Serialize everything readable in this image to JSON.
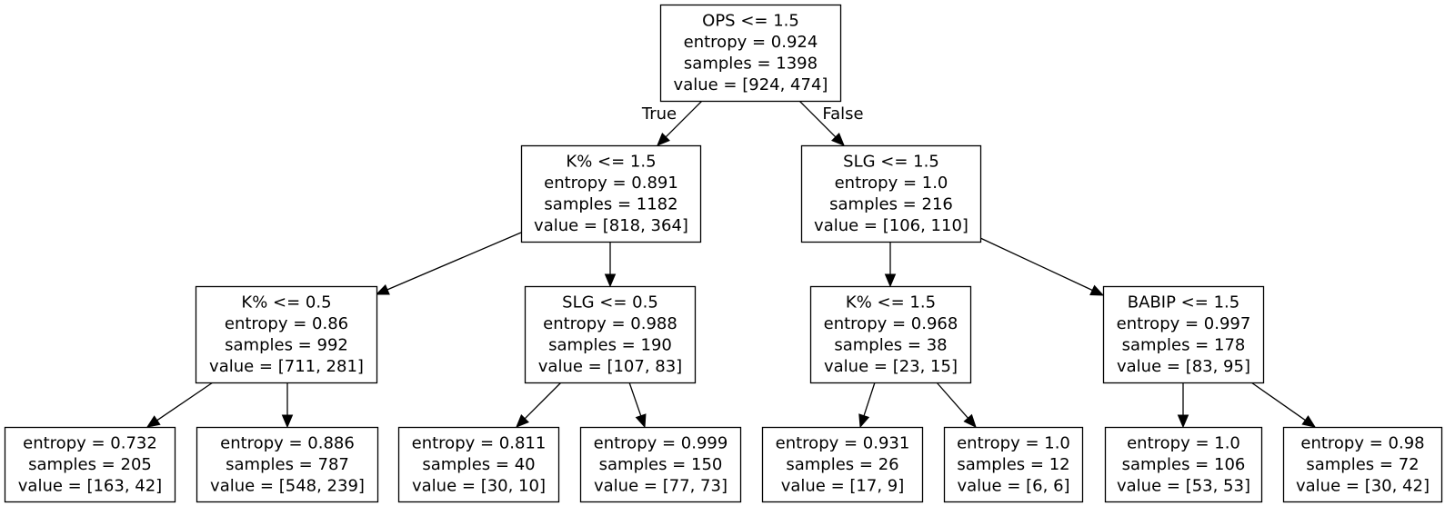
{
  "tree": {
    "nodes": [
      {
        "id": "n0",
        "lines": [
          "OPS <= 1.5",
          "entropy = 0.924",
          "samples = 1398",
          "value = [924, 474]"
        ]
      },
      {
        "id": "n1",
        "lines": [
          "K% <= 1.5",
          "entropy = 0.891",
          "samples = 1182",
          "value = [818, 364]"
        ]
      },
      {
        "id": "n2",
        "lines": [
          "SLG <= 1.5",
          "entropy = 1.0",
          "samples = 216",
          "value = [106, 110]"
        ]
      },
      {
        "id": "n3",
        "lines": [
          "K% <= 0.5",
          "entropy = 0.86",
          "samples = 992",
          "value = [711, 281]"
        ]
      },
      {
        "id": "n4",
        "lines": [
          "SLG <= 0.5",
          "entropy = 0.988",
          "samples = 190",
          "value = [107, 83]"
        ]
      },
      {
        "id": "n5",
        "lines": [
          "K% <= 1.5",
          "entropy = 0.968",
          "samples = 38",
          "value = [23, 15]"
        ]
      },
      {
        "id": "n6",
        "lines": [
          "BABIP <= 1.5",
          "entropy = 0.997",
          "samples = 178",
          "value = [83, 95]"
        ]
      },
      {
        "id": "n7",
        "lines": [
          "entropy = 0.732",
          "samples = 205",
          "value = [163, 42]"
        ]
      },
      {
        "id": "n8",
        "lines": [
          "entropy = 0.886",
          "samples = 787",
          "value = [548, 239]"
        ]
      },
      {
        "id": "n9",
        "lines": [
          "entropy = 0.811",
          "samples = 40",
          "value = [30, 10]"
        ]
      },
      {
        "id": "n10",
        "lines": [
          "entropy = 0.999",
          "samples = 150",
          "value = [77, 73]"
        ]
      },
      {
        "id": "n11",
        "lines": [
          "entropy = 0.931",
          "samples = 26",
          "value = [17, 9]"
        ]
      },
      {
        "id": "n12",
        "lines": [
          "entropy = 1.0",
          "samples = 12",
          "value = [6, 6]"
        ]
      },
      {
        "id": "n13",
        "lines": [
          "entropy = 1.0",
          "samples = 106",
          "value = [53, 53]"
        ]
      },
      {
        "id": "n14",
        "lines": [
          "entropy = 0.98",
          "samples = 72",
          "value = [30, 42]"
        ]
      }
    ],
    "edges": [
      {
        "from": "n0",
        "to": "n1",
        "label": "True"
      },
      {
        "from": "n0",
        "to": "n2",
        "label": "False"
      },
      {
        "from": "n1",
        "to": "n3",
        "label": ""
      },
      {
        "from": "n1",
        "to": "n4",
        "label": ""
      },
      {
        "from": "n2",
        "to": "n5",
        "label": ""
      },
      {
        "from": "n2",
        "to": "n6",
        "label": ""
      },
      {
        "from": "n3",
        "to": "n7",
        "label": ""
      },
      {
        "from": "n3",
        "to": "n8",
        "label": ""
      },
      {
        "from": "n4",
        "to": "n9",
        "label": ""
      },
      {
        "from": "n4",
        "to": "n10",
        "label": ""
      },
      {
        "from": "n5",
        "to": "n11",
        "label": ""
      },
      {
        "from": "n5",
        "to": "n12",
        "label": ""
      },
      {
        "from": "n6",
        "to": "n13",
        "label": ""
      },
      {
        "from": "n6",
        "to": "n14",
        "label": ""
      }
    ]
  }
}
